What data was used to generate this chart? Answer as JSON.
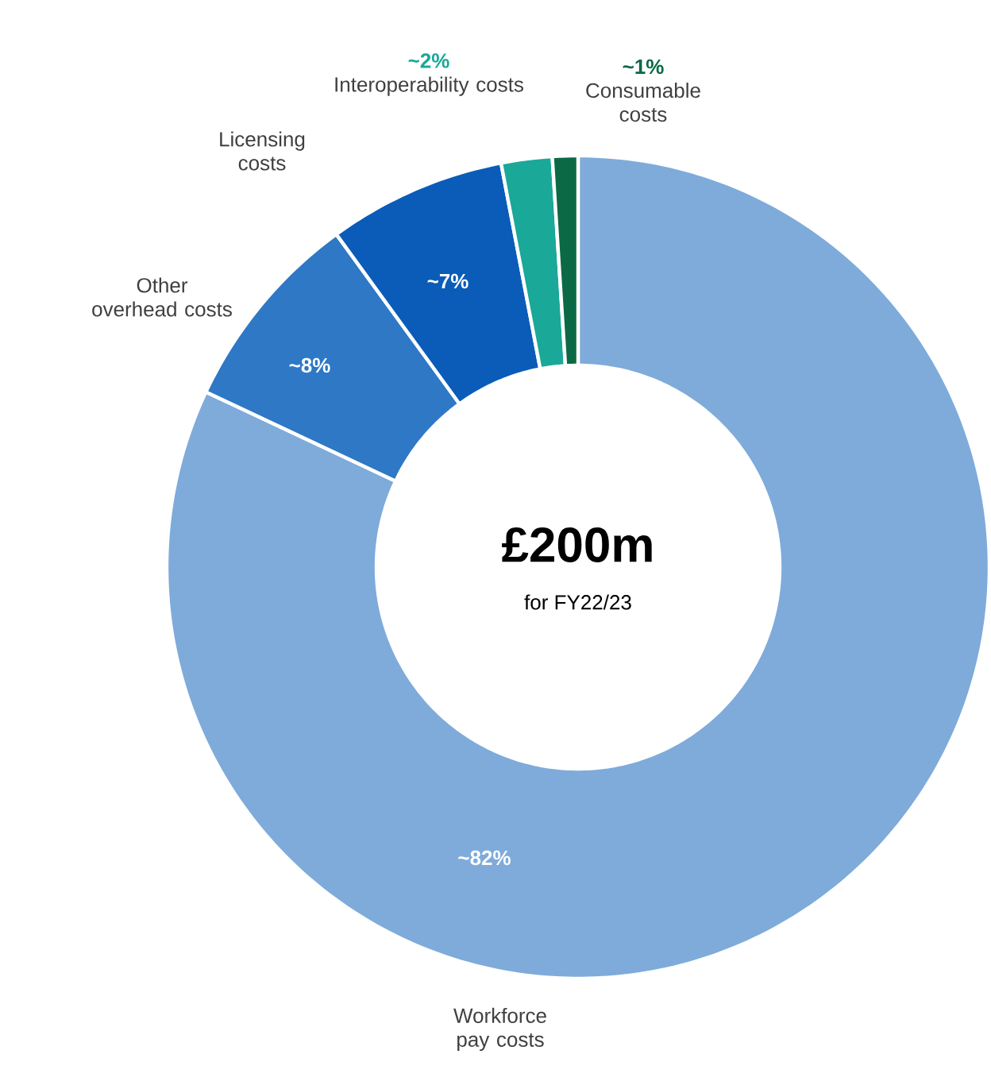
{
  "chart_data": {
    "type": "donut",
    "title": "£200m",
    "subtitle": "for FY22/23",
    "categories": [
      "Workforce pay costs",
      "Other overhead costs",
      "Licensing costs",
      "Interoperability costs",
      "Consumable costs"
    ],
    "values": [
      82,
      8,
      7,
      2,
      1
    ],
    "value_labels": [
      "~82%",
      "~8%",
      "~7%",
      "~2%",
      "~1%"
    ],
    "colors": [
      "#7eabda",
      "#2e78c6",
      "#0a5cb8",
      "#1aa898",
      "#0b6a45"
    ]
  }
}
